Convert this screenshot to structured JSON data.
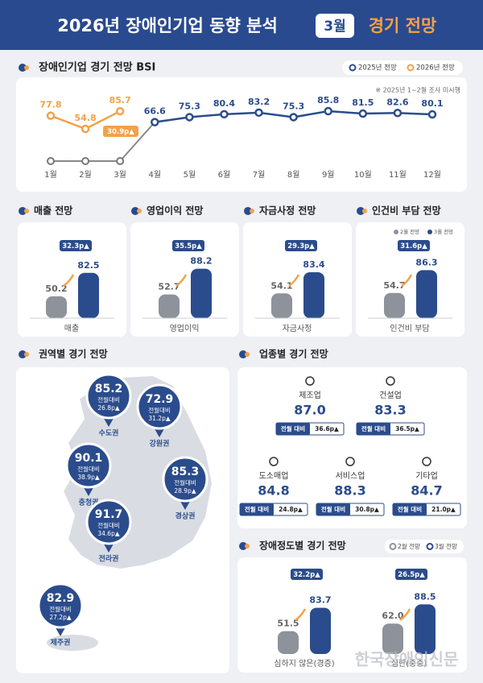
{
  "header": {
    "title": "2026년 장애인기업 동향 분석",
    "badge": "3월",
    "subtitle": "경기 전망"
  },
  "bsi": {
    "title": "장애인기업 경기 전망 BSI",
    "note": "※ 2025년 1~2월 조사 미시행",
    "categories": [
      "1월",
      "2월",
      "3월",
      "4월",
      "5월",
      "6월",
      "7월",
      "8월",
      "9월",
      "10월",
      "11월",
      "12월"
    ],
    "series": [
      {
        "name": "2025년 전망",
        "color": "#2b4c8c",
        "values": [
          null,
          null,
          null,
          66.6,
          75.3,
          80.4,
          83.2,
          75.3,
          85.8,
          81.5,
          82.6,
          80.1
        ]
      },
      {
        "name": "2026년 전망",
        "color": "#f2a24a",
        "values": [
          77.8,
          54.8,
          85.7,
          null,
          null,
          null,
          null,
          null,
          null,
          null,
          null,
          null
        ]
      }
    ],
    "change": "30.9p▲"
  },
  "indicators": {
    "legend": [
      "2월 전망",
      "3월 전망"
    ],
    "colors": [
      "#8d929b",
      "#2b4c8c"
    ],
    "items": [
      {
        "title": "매출 전망",
        "category": "매출",
        "values": [
          50.2,
          82.5
        ],
        "change": "32.3p▲"
      },
      {
        "title": "영업이익 전망",
        "category": "영업이익",
        "values": [
          52.7,
          88.2
        ],
        "change": "35.5p▲"
      },
      {
        "title": "자금사정 전망",
        "category": "자금사정",
        "values": [
          54.1,
          83.4
        ],
        "change": "29.3p▲"
      },
      {
        "title": "인건비 부담 전망",
        "category": "인건비 부담",
        "values": [
          54.7,
          86.3
        ],
        "change": "31.6p▲"
      }
    ]
  },
  "regions": {
    "title": "권역별 경기 전망",
    "label": "전월대비",
    "items": [
      {
        "name": "수도권",
        "value": "85.2",
        "change": "26.8p▲"
      },
      {
        "name": "강원권",
        "value": "72.9",
        "change": "31.2p▲"
      },
      {
        "name": "충청권",
        "value": "90.1",
        "change": "38.9p▲"
      },
      {
        "name": "경상권",
        "value": "85.3",
        "change": "28.9p▲"
      },
      {
        "name": "전라권",
        "value": "91.7",
        "change": "34.6p▲"
      },
      {
        "name": "제주권",
        "value": "82.9",
        "change": "27.2p▲"
      }
    ]
  },
  "industries": {
    "title": "업종별 경기 전망",
    "label": "전월 대비",
    "items": [
      {
        "name": "제조업",
        "value": "87.0",
        "change": "36.6p▲"
      },
      {
        "name": "건설업",
        "value": "83.3",
        "change": "36.5p▲"
      },
      {
        "name": "도소매업",
        "value": "84.8",
        "change": "24.8p▲"
      },
      {
        "name": "서비스업",
        "value": "88.3",
        "change": "30.8p▲"
      },
      {
        "name": "기타업",
        "value": "84.7",
        "change": "21.0p▲"
      }
    ]
  },
  "severity": {
    "title": "장애정도별 경기 전망",
    "legend": [
      "2월 전망",
      "3월 전망"
    ],
    "colors": [
      "#8d929b",
      "#2b4c8c"
    ],
    "items": [
      {
        "category": "심하지 않은(경증)",
        "values": [
          51.5,
          83.7
        ],
        "value_labels": [
          "51.5",
          "83.7"
        ],
        "change": "32.2p▲"
      },
      {
        "category": "심한(중증)",
        "values": [
          62.0,
          88.5
        ],
        "value_labels": [
          "62.0",
          "88.5"
        ],
        "change": "26.5p▲"
      }
    ]
  },
  "watermark": "한국장애인신문"
}
